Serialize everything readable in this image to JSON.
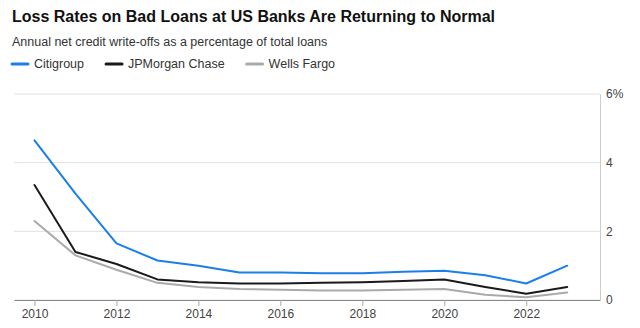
{
  "chart_data": {
    "type": "line",
    "title": "Loss Rates on Bad Loans at US Banks Are Returning to Normal",
    "subtitle": "Annual net credit write-offs as a percentage of total loans",
    "x": [
      2010,
      2011,
      2012,
      2013,
      2014,
      2015,
      2016,
      2017,
      2018,
      2019,
      2020,
      2021,
      2022,
      2023
    ],
    "series": [
      {
        "name": "Citigroup",
        "color": "#1a7fe8",
        "values": [
          4.65,
          3.1,
          1.65,
          1.15,
          1.0,
          0.8,
          0.8,
          0.78,
          0.78,
          0.82,
          0.85,
          0.72,
          0.48,
          1.0
        ]
      },
      {
        "name": "JPMorgan Chase",
        "color": "#1a1a1a",
        "values": [
          3.35,
          1.4,
          1.05,
          0.6,
          0.52,
          0.48,
          0.48,
          0.5,
          0.52,
          0.55,
          0.6,
          0.38,
          0.18,
          0.38
        ]
      },
      {
        "name": "Wells Fargo",
        "color": "#aaaaaa",
        "values": [
          2.3,
          1.3,
          0.88,
          0.5,
          0.38,
          0.32,
          0.3,
          0.28,
          0.28,
          0.3,
          0.32,
          0.15,
          0.08,
          0.22
        ]
      }
    ],
    "xlim": [
      2009.5,
      2023.8
    ],
    "xticks": [
      2010,
      2012,
      2014,
      2016,
      2018,
      2020,
      2022
    ],
    "ylim": [
      0,
      6.0
    ],
    "yticks": [
      0,
      2,
      4,
      {
        "value": 6,
        "label": "6%"
      }
    ],
    "grid": true,
    "legend": "top"
  }
}
